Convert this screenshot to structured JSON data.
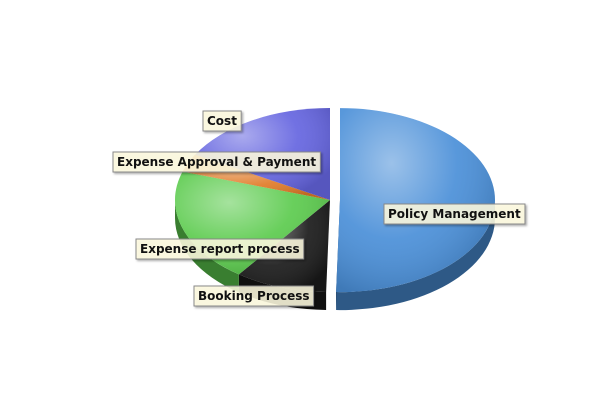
{
  "chart_data": {
    "type": "pie",
    "title": "",
    "legend": "none",
    "slices": [
      {
        "label": "Policy Management",
        "value": 50.4,
        "color": "#4a8fd8",
        "exploded": true
      },
      {
        "label": "Booking Process",
        "value": 9.6,
        "color": "#1a1a1a",
        "exploded": false
      },
      {
        "label": "Expense report process",
        "value": 20.0,
        "color": "#5ccb4e",
        "exploded": false
      },
      {
        "label": "Expense Approval & Payment",
        "value": 3.2,
        "color": "#e07b28",
        "exploded": false
      },
      {
        "label": "Cost",
        "value": 16.8,
        "color": "#6565e0",
        "exploded": false
      }
    ]
  }
}
